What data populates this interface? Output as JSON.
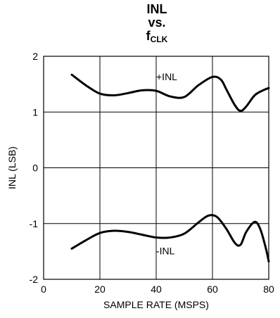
{
  "chart_data": {
    "type": "line",
    "title": {
      "line1": "INL",
      "line2": "vs.",
      "line3_main": "f",
      "line3_sub": "CLK"
    },
    "xlabel": "SAMPLE RATE (MSPS)",
    "ylabel": "INL (LSB)",
    "xlim": [
      0,
      80
    ],
    "ylim": [
      -2,
      2
    ],
    "x_ticks": [
      "0",
      "20",
      "40",
      "60",
      "80"
    ],
    "y_ticks": [
      "2",
      "1",
      "0",
      "-1",
      "-2"
    ],
    "grid": true,
    "series": [
      {
        "name": "+INL",
        "x": [
          10,
          15,
          20,
          25,
          30,
          35,
          40,
          45,
          50,
          55,
          60,
          63,
          65,
          68,
          70,
          72,
          75,
          78,
          80
        ],
        "y": [
          1.67,
          1.48,
          1.33,
          1.3,
          1.34,
          1.39,
          1.38,
          1.28,
          1.27,
          1.48,
          1.63,
          1.58,
          1.4,
          1.12,
          1.02,
          1.1,
          1.3,
          1.39,
          1.43
        ]
      },
      {
        "name": "-INL",
        "x": [
          10,
          15,
          20,
          25,
          30,
          35,
          40,
          45,
          50,
          55,
          58,
          60,
          62,
          65,
          68,
          70,
          72,
          75,
          77,
          79,
          80
        ],
        "y": [
          -1.45,
          -1.3,
          -1.17,
          -1.13,
          -1.15,
          -1.2,
          -1.25,
          -1.25,
          -1.18,
          -0.98,
          -0.87,
          -0.85,
          -0.9,
          -1.1,
          -1.35,
          -1.38,
          -1.15,
          -0.97,
          -1.1,
          -1.45,
          -1.68
        ]
      }
    ],
    "annotations": [
      "+INL",
      "-INL"
    ]
  }
}
